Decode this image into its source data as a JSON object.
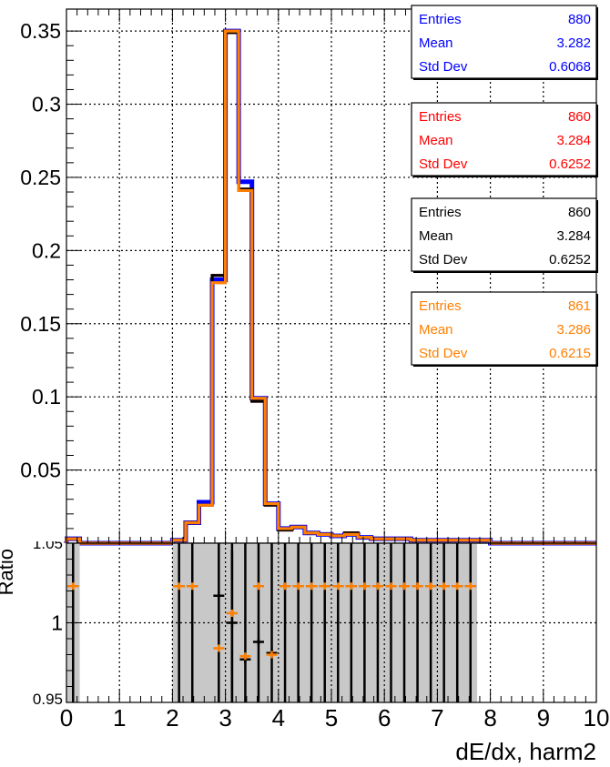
{
  "stats_boxes": [
    {
      "color": "#0000ff",
      "rows": [
        [
          "Entries",
          "880"
        ],
        [
          "Mean",
          "3.282"
        ],
        [
          "Std Dev",
          "0.6068"
        ]
      ]
    },
    {
      "color": "#ff0000",
      "rows": [
        [
          "Entries",
          "860"
        ],
        [
          "Mean",
          "3.284"
        ],
        [
          "Std Dev",
          "0.6252"
        ]
      ]
    },
    {
      "color": "#000000",
      "rows": [
        [
          "Entries",
          "860"
        ],
        [
          "Mean",
          "3.284"
        ],
        [
          "Std Dev",
          "0.6252"
        ]
      ]
    },
    {
      "color": "#ff7f00",
      "rows": [
        [
          "Entries",
          "861"
        ],
        [
          "Mean",
          "3.286"
        ],
        [
          "Std Dev",
          "0.6215"
        ]
      ]
    }
  ],
  "chart_data": [
    {
      "type": "line",
      "title": "",
      "xlabel": "",
      "ylabel": "",
      "xlim": [
        0,
        10
      ],
      "ylim": [
        0,
        0.365
      ],
      "grid": true,
      "yticks": [
        "0.05",
        "0.1",
        "0.15",
        "0.2",
        "0.25",
        "0.3",
        "0.35"
      ],
      "bin_edges": [
        0,
        0.25,
        0.5,
        0.75,
        1,
        1.25,
        1.5,
        1.75,
        2,
        2.25,
        2.5,
        2.75,
        3,
        3.25,
        3.5,
        3.75,
        4,
        4.25,
        4.5,
        4.75,
        5,
        5.25,
        5.5,
        5.75,
        6,
        6.25,
        6.5,
        6.75,
        7,
        7.25,
        7.5,
        7.75,
        8,
        8.25,
        8.5,
        8.75,
        9,
        9.25,
        9.5,
        9.75,
        10
      ],
      "series": [
        {
          "color": "#0000ff",
          "values": [
            0.003,
            0,
            0,
            0,
            0,
            0,
            0,
            0,
            0.002,
            0.014,
            0.028,
            0.18,
            0.35,
            0.247,
            0.099,
            0.027,
            0.01,
            0.011,
            0.007,
            0.006,
            0.005,
            0.006,
            0.004,
            0.003,
            0.003,
            0.003,
            0.002,
            0.002,
            0.002,
            0.002,
            0.002,
            0.002,
            0,
            0,
            0,
            0,
            0,
            0,
            0,
            0
          ]
        },
        {
          "color": "#ff0000",
          "values": [
            0.003,
            0,
            0,
            0,
            0,
            0,
            0,
            0,
            0.002,
            0.014,
            0.026,
            0.183,
            0.349,
            0.242,
            0.097,
            0.026,
            0.009,
            0.011,
            0.007,
            0.006,
            0.005,
            0.007,
            0.004,
            0.003,
            0.003,
            0.003,
            0.002,
            0.002,
            0.002,
            0.002,
            0.002,
            0.002,
            0,
            0,
            0,
            0,
            0,
            0,
            0,
            0
          ]
        },
        {
          "color": "#000000",
          "values": [
            0.003,
            0,
            0,
            0,
            0,
            0,
            0,
            0,
            0.002,
            0.014,
            0.026,
            0.183,
            0.349,
            0.242,
            0.097,
            0.026,
            0.009,
            0.011,
            0.007,
            0.006,
            0.005,
            0.007,
            0.004,
            0.003,
            0.003,
            0.003,
            0.002,
            0.002,
            0.002,
            0.002,
            0.002,
            0.002,
            0,
            0,
            0,
            0,
            0,
            0,
            0,
            0
          ]
        },
        {
          "color": "#ff7f00",
          "values": [
            0.003,
            0,
            0,
            0,
            0,
            0,
            0,
            0,
            0.002,
            0.014,
            0.026,
            0.178,
            0.35,
            0.241,
            0.099,
            0.027,
            0.01,
            0.011,
            0.007,
            0.006,
            0.005,
            0.006,
            0.004,
            0.003,
            0.003,
            0.003,
            0.002,
            0.002,
            0.002,
            0.002,
            0.002,
            0.002,
            0,
            0,
            0,
            0,
            0,
            0,
            0,
            0
          ]
        }
      ]
    },
    {
      "type": "scatter",
      "title": "",
      "xlabel": "dE/dx, harm2",
      "ylabel": "Ratio",
      "xlim": [
        0,
        10
      ],
      "ylim": [
        0.95,
        1.05
      ],
      "grid": true,
      "xticks": [
        "0",
        "1",
        "2",
        "3",
        "4",
        "5",
        "6",
        "7",
        "8",
        "9",
        "10"
      ],
      "yticks": [
        "0.95",
        "1",
        "1.05"
      ],
      "error_band": {
        "color": "#c8c8c8",
        "ranges": [
          [
            0,
            0.25
          ],
          [
            2,
            7.75
          ]
        ]
      },
      "series": [
        {
          "color": "#000000",
          "x": [
            0.125,
            2.125,
            2.375,
            2.875,
            3.125,
            3.375,
            3.625,
            3.875,
            4.125,
            4.375,
            4.625,
            4.875,
            5.125,
            5.375,
            5.625,
            5.875,
            6.125,
            6.375,
            6.625,
            6.875,
            7.125,
            7.375,
            7.625
          ],
          "y": [
            1.023,
            1.023,
            1.023,
            1.017,
            1.0,
            0.977,
            0.988,
            0.981,
            1.023,
            1.023,
            1.023,
            1.023,
            1.023,
            1.023,
            1.023,
            1.023,
            1.023,
            1.023,
            1.023,
            1.023,
            1.023,
            1.023,
            1.023
          ]
        },
        {
          "color": "#ff7f00",
          "x": [
            0.125,
            2.125,
            2.375,
            2.875,
            3.125,
            3.375,
            3.625,
            3.875,
            4.125,
            4.375,
            4.625,
            4.875,
            5.125,
            5.375,
            5.625,
            5.875,
            6.125,
            6.375,
            6.625,
            6.875,
            7.125,
            7.375,
            7.625
          ],
          "y": [
            1.023,
            1.023,
            1.023,
            0.984,
            1.006,
            0.979,
            1.023,
            0.98,
            1.023,
            1.023,
            1.023,
            1.023,
            1.023,
            1.023,
            1.023,
            1.023,
            1.023,
            1.023,
            1.023,
            1.023,
            1.023,
            1.023,
            1.023
          ]
        }
      ]
    }
  ]
}
